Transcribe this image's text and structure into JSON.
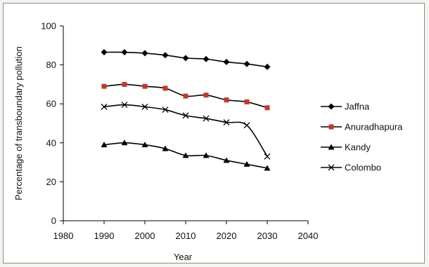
{
  "chart_data": {
    "type": "line",
    "xlabel": "Year",
    "ylabel": "Percentage of transboundary pollution",
    "xlim": [
      1980,
      2040
    ],
    "ylim": [
      0,
      100
    ],
    "xticks": [
      1980,
      1990,
      2000,
      2010,
      2020,
      2030,
      2040
    ],
    "yticks": [
      0,
      20,
      40,
      60,
      80,
      100
    ],
    "grid": false,
    "legend_position": "right",
    "x": [
      1990,
      1995,
      2000,
      2005,
      2010,
      2015,
      2020,
      2025,
      2030
    ],
    "series": [
      {
        "name": "Jaffna",
        "marker": "diamond",
        "color": "#000000",
        "values": [
          86.5,
          86.5,
          86,
          85,
          83.5,
          83,
          81.5,
          80.5,
          79
        ]
      },
      {
        "name": "Anuradhapura",
        "marker": "square",
        "color": "#000000",
        "marker_color": "#c0392b",
        "values": [
          69,
          70,
          69,
          68,
          64,
          64.5,
          62,
          61,
          58
        ]
      },
      {
        "name": "Kandy",
        "marker": "triangle",
        "color": "#000000",
        "values": [
          39,
          40,
          39,
          37,
          33.5,
          33.5,
          31,
          29,
          27
        ]
      },
      {
        "name": "Colombo",
        "marker": "x",
        "color": "#000000",
        "values": [
          58.5,
          59.5,
          58.5,
          57,
          54,
          52.5,
          50.5,
          49,
          33
        ]
      }
    ]
  }
}
